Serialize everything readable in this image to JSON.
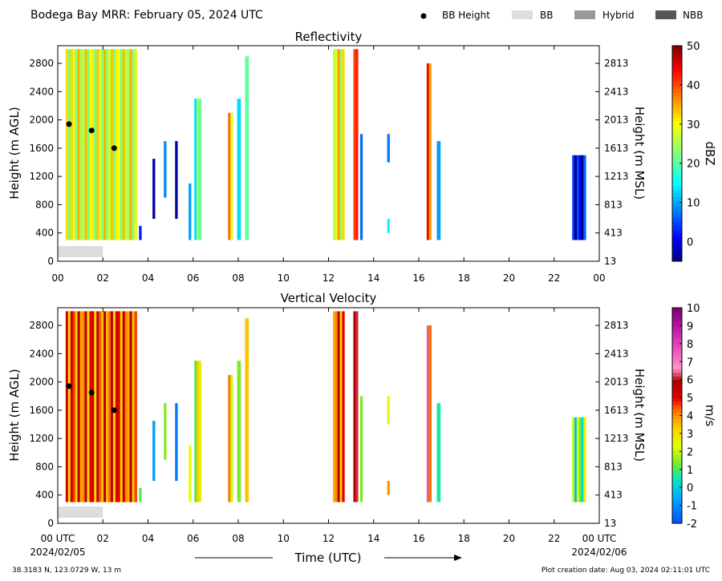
{
  "header": {
    "title": "Bodega Bay MRR:  February 05, 2024 UTC",
    "legend": [
      {
        "label": "BB Height",
        "symbol": "dot",
        "color": "#000000"
      },
      {
        "label": "BB",
        "symbol": "box",
        "color": "#dddddd"
      },
      {
        "label": "Hybrid",
        "symbol": "box",
        "color": "#999999"
      },
      {
        "label": "NBB",
        "symbol": "box",
        "color": "#555555"
      }
    ]
  },
  "footer": {
    "location": "38.3183 N, 123.0729 W, 13 m",
    "creation": "Plot creation date: Aug 03, 2024 02:11:01 UTC",
    "xlabel": "Time (UTC)",
    "start_date": "2024/02/05",
    "end_date": "2024/02/06"
  },
  "chart_data": [
    {
      "type": "heatmap",
      "title": "Reflectivity",
      "xlabel": "",
      "ylabel": "Height (m AGL)",
      "ylabel_right": "Height (m MSL)",
      "xlim": [
        0,
        24
      ],
      "ylim": [
        0,
        3050
      ],
      "x_ticks": [
        "00",
        "02",
        "04",
        "06",
        "08",
        "10",
        "12",
        "14",
        "16",
        "18",
        "20",
        "22",
        "00"
      ],
      "y_ticks": [
        0,
        400,
        800,
        1200,
        1600,
        2000,
        2400,
        2800
      ],
      "y_ticks_right": [
        "13",
        "413",
        "813",
        "1213",
        "1613",
        "2013",
        "2413",
        "2813"
      ],
      "colorbar": {
        "label": "dBZ",
        "min": -5,
        "max": 50,
        "ticks": [
          0,
          10,
          20,
          30,
          40,
          50
        ],
        "scheme": "jet"
      },
      "bb_height_points": [
        {
          "x": 0.5,
          "y": 1940
        },
        {
          "x": 1.5,
          "y": 1850
        },
        {
          "x": 2.5,
          "y": 1600
        }
      ],
      "bb_type_periods": [
        {
          "start": 0,
          "end": 2.0,
          "type": "BB"
        }
      ],
      "precip_segments": [
        {
          "start": 0.35,
          "end": 3.5,
          "base": 300,
          "top": 3000,
          "level": 28
        },
        {
          "start": 3.6,
          "end": 3.7,
          "base": 300,
          "top": 500,
          "level": 2
        },
        {
          "start": 4.2,
          "end": 4.3,
          "base": 600,
          "top": 1450,
          "level": 3
        },
        {
          "start": 4.7,
          "end": 4.8,
          "base": 900,
          "top": 1700,
          "level": 2
        },
        {
          "start": 5.2,
          "end": 5.3,
          "base": 600,
          "top": 1700,
          "level": 3
        },
        {
          "start": 5.8,
          "end": 5.9,
          "base": 300,
          "top": 1100,
          "level": 8
        },
        {
          "start": 6.05,
          "end": 6.35,
          "base": 300,
          "top": 2300,
          "level": 20
        },
        {
          "start": 7.55,
          "end": 7.75,
          "base": 300,
          "top": 2100,
          "level": 35
        },
        {
          "start": 7.95,
          "end": 8.1,
          "base": 300,
          "top": 2300,
          "level": 18
        },
        {
          "start": 8.3,
          "end": 8.45,
          "base": 300,
          "top": 2900,
          "level": 14
        },
        {
          "start": 12.2,
          "end": 12.7,
          "base": 300,
          "top": 3000,
          "level": 30
        },
        {
          "start": 13.1,
          "end": 13.3,
          "base": 300,
          "top": 3000,
          "level": 44
        },
        {
          "start": 13.4,
          "end": 13.5,
          "base": 300,
          "top": 1800,
          "level": 10
        },
        {
          "start": 14.6,
          "end": 14.7,
          "base": 1400,
          "top": 1800,
          "level": 1
        },
        {
          "start": 14.6,
          "end": 14.7,
          "base": 400,
          "top": 600,
          "level": 8
        },
        {
          "start": 16.35,
          "end": 16.55,
          "base": 300,
          "top": 2800,
          "level": 38
        },
        {
          "start": 16.8,
          "end": 16.95,
          "base": 300,
          "top": 1700,
          "level": 16
        },
        {
          "start": 22.8,
          "end": 23.4,
          "base": 300,
          "top": 1500,
          "level": 0
        }
      ]
    },
    {
      "type": "heatmap",
      "title": "Vertical Velocity",
      "xlabel": "Time (UTC)",
      "ylabel": "Height (m AGL)",
      "ylabel_right": "Height (m MSL)",
      "xlim": [
        0,
        24
      ],
      "ylim": [
        0,
        3050
      ],
      "x_ticks": [
        "00 UTC",
        "02",
        "04",
        "06",
        "08",
        "10",
        "12",
        "14",
        "16",
        "18",
        "20",
        "22",
        "00 UTC"
      ],
      "y_ticks": [
        0,
        400,
        800,
        1200,
        1600,
        2000,
        2400,
        2800
      ],
      "y_ticks_right": [
        "13",
        "413",
        "813",
        "1213",
        "1613",
        "2013",
        "2413",
        "2813"
      ],
      "colorbar": {
        "label": "m/s",
        "min": -2,
        "max": 10,
        "ticks": [
          -2,
          -1,
          0,
          1,
          2,
          3,
          4,
          5,
          6,
          7,
          8,
          9,
          10
        ],
        "scheme": "velocity"
      },
      "bb_height_points": [
        {
          "x": 0.5,
          "y": 1940
        },
        {
          "x": 1.5,
          "y": 1850
        },
        {
          "x": 2.5,
          "y": 1600
        }
      ],
      "bb_type_periods": [
        {
          "start": 0,
          "end": 2.0,
          "type": "BB"
        }
      ],
      "precip_segments": [
        {
          "start": 0.35,
          "end": 3.5,
          "base": 300,
          "top": 3000,
          "level": 4.5
        },
        {
          "start": 3.6,
          "end": 3.7,
          "base": 300,
          "top": 500,
          "level": 1
        },
        {
          "start": 4.2,
          "end": 4.3,
          "base": 600,
          "top": 1450,
          "level": 0.5
        },
        {
          "start": 4.7,
          "end": 4.8,
          "base": 900,
          "top": 1700,
          "level": 0
        },
        {
          "start": 5.2,
          "end": 5.3,
          "base": 600,
          "top": 1700,
          "level": 0
        },
        {
          "start": 5.8,
          "end": 5.9,
          "base": 300,
          "top": 1100,
          "level": 2
        },
        {
          "start": 6.05,
          "end": 6.35,
          "base": 300,
          "top": 2300,
          "level": 2.5
        },
        {
          "start": 7.55,
          "end": 7.75,
          "base": 300,
          "top": 2100,
          "level": 3.5
        },
        {
          "start": 7.95,
          "end": 8.1,
          "base": 300,
          "top": 2300,
          "level": 2.5
        },
        {
          "start": 8.3,
          "end": 8.45,
          "base": 300,
          "top": 2900,
          "level": 2
        },
        {
          "start": 12.2,
          "end": 12.7,
          "base": 300,
          "top": 3000,
          "level": 4.5
        },
        {
          "start": 13.1,
          "end": 13.3,
          "base": 300,
          "top": 3000,
          "level": 6.5
        },
        {
          "start": 13.4,
          "end": 13.5,
          "base": 300,
          "top": 1800,
          "level": 2
        },
        {
          "start": 14.6,
          "end": 14.7,
          "base": 1400,
          "top": 1800,
          "level": 1
        },
        {
          "start": 14.6,
          "end": 14.7,
          "base": 400,
          "top": 600,
          "level": 2.5
        },
        {
          "start": 16.35,
          "end": 16.55,
          "base": 300,
          "top": 2800,
          "level": 5
        },
        {
          "start": 16.8,
          "end": 16.95,
          "base": 300,
          "top": 1700,
          "level": 2
        },
        {
          "start": 22.8,
          "end": 23.4,
          "base": 300,
          "top": 1500,
          "level": 1.2
        }
      ]
    }
  ]
}
